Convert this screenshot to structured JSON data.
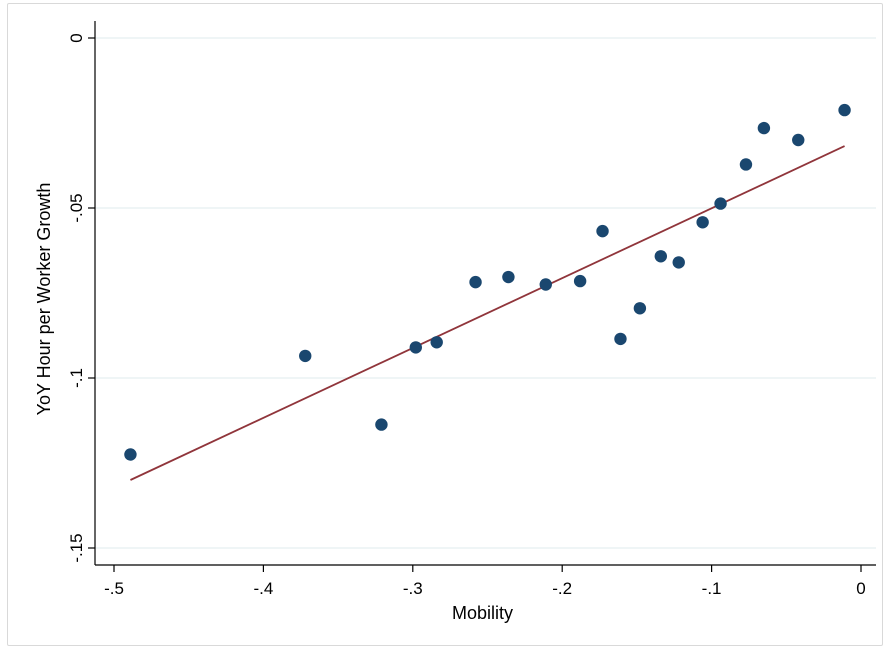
{
  "chart_data": {
    "type": "scatter",
    "title": "",
    "xlabel": "Mobility",
    "ylabel": "YoY Hour per Worker Growth",
    "xlim": [
      -0.5,
      0
    ],
    "ylim": [
      -0.15,
      0
    ],
    "grid": true,
    "x_ticks": [
      {
        "value": -0.5,
        "label": "-.5"
      },
      {
        "value": -0.4,
        "label": "-.4"
      },
      {
        "value": -0.3,
        "label": "-.3"
      },
      {
        "value": -0.2,
        "label": "-.2"
      },
      {
        "value": -0.1,
        "label": "-.1"
      },
      {
        "value": 0,
        "label": "0"
      }
    ],
    "y_ticks": [
      {
        "value": 0,
        "label": "0"
      },
      {
        "value": -0.05,
        "label": "-.05"
      },
      {
        "value": -0.1,
        "label": "-.1"
      },
      {
        "value": -0.15,
        "label": "-.15"
      }
    ],
    "points": [
      {
        "x": -0.489,
        "y": -0.1225
      },
      {
        "x": -0.372,
        "y": -0.0935
      },
      {
        "x": -0.321,
        "y": -0.1137
      },
      {
        "x": -0.298,
        "y": -0.091
      },
      {
        "x": -0.284,
        "y": -0.0895
      },
      {
        "x": -0.258,
        "y": -0.0718
      },
      {
        "x": -0.236,
        "y": -0.0703
      },
      {
        "x": -0.211,
        "y": -0.0725
      },
      {
        "x": -0.188,
        "y": -0.0715
      },
      {
        "x": -0.173,
        "y": -0.0568
      },
      {
        "x": -0.161,
        "y": -0.0885
      },
      {
        "x": -0.148,
        "y": -0.0795
      },
      {
        "x": -0.134,
        "y": -0.0642
      },
      {
        "x": -0.122,
        "y": -0.066
      },
      {
        "x": -0.106,
        "y": -0.0542
      },
      {
        "x": -0.094,
        "y": -0.0487
      },
      {
        "x": -0.077,
        "y": -0.0372
      },
      {
        "x": -0.065,
        "y": -0.0265
      },
      {
        "x": -0.042,
        "y": -0.03
      },
      {
        "x": -0.011,
        "y": -0.0212
      }
    ],
    "fit_line": {
      "x": [
        -0.489,
        -0.011
      ],
      "y": [
        -0.13,
        -0.0318
      ]
    },
    "colors": {
      "points": "#1a476f",
      "fit_line": "#90353b",
      "grid": "#eaf2f3",
      "axis": "#000000"
    }
  }
}
